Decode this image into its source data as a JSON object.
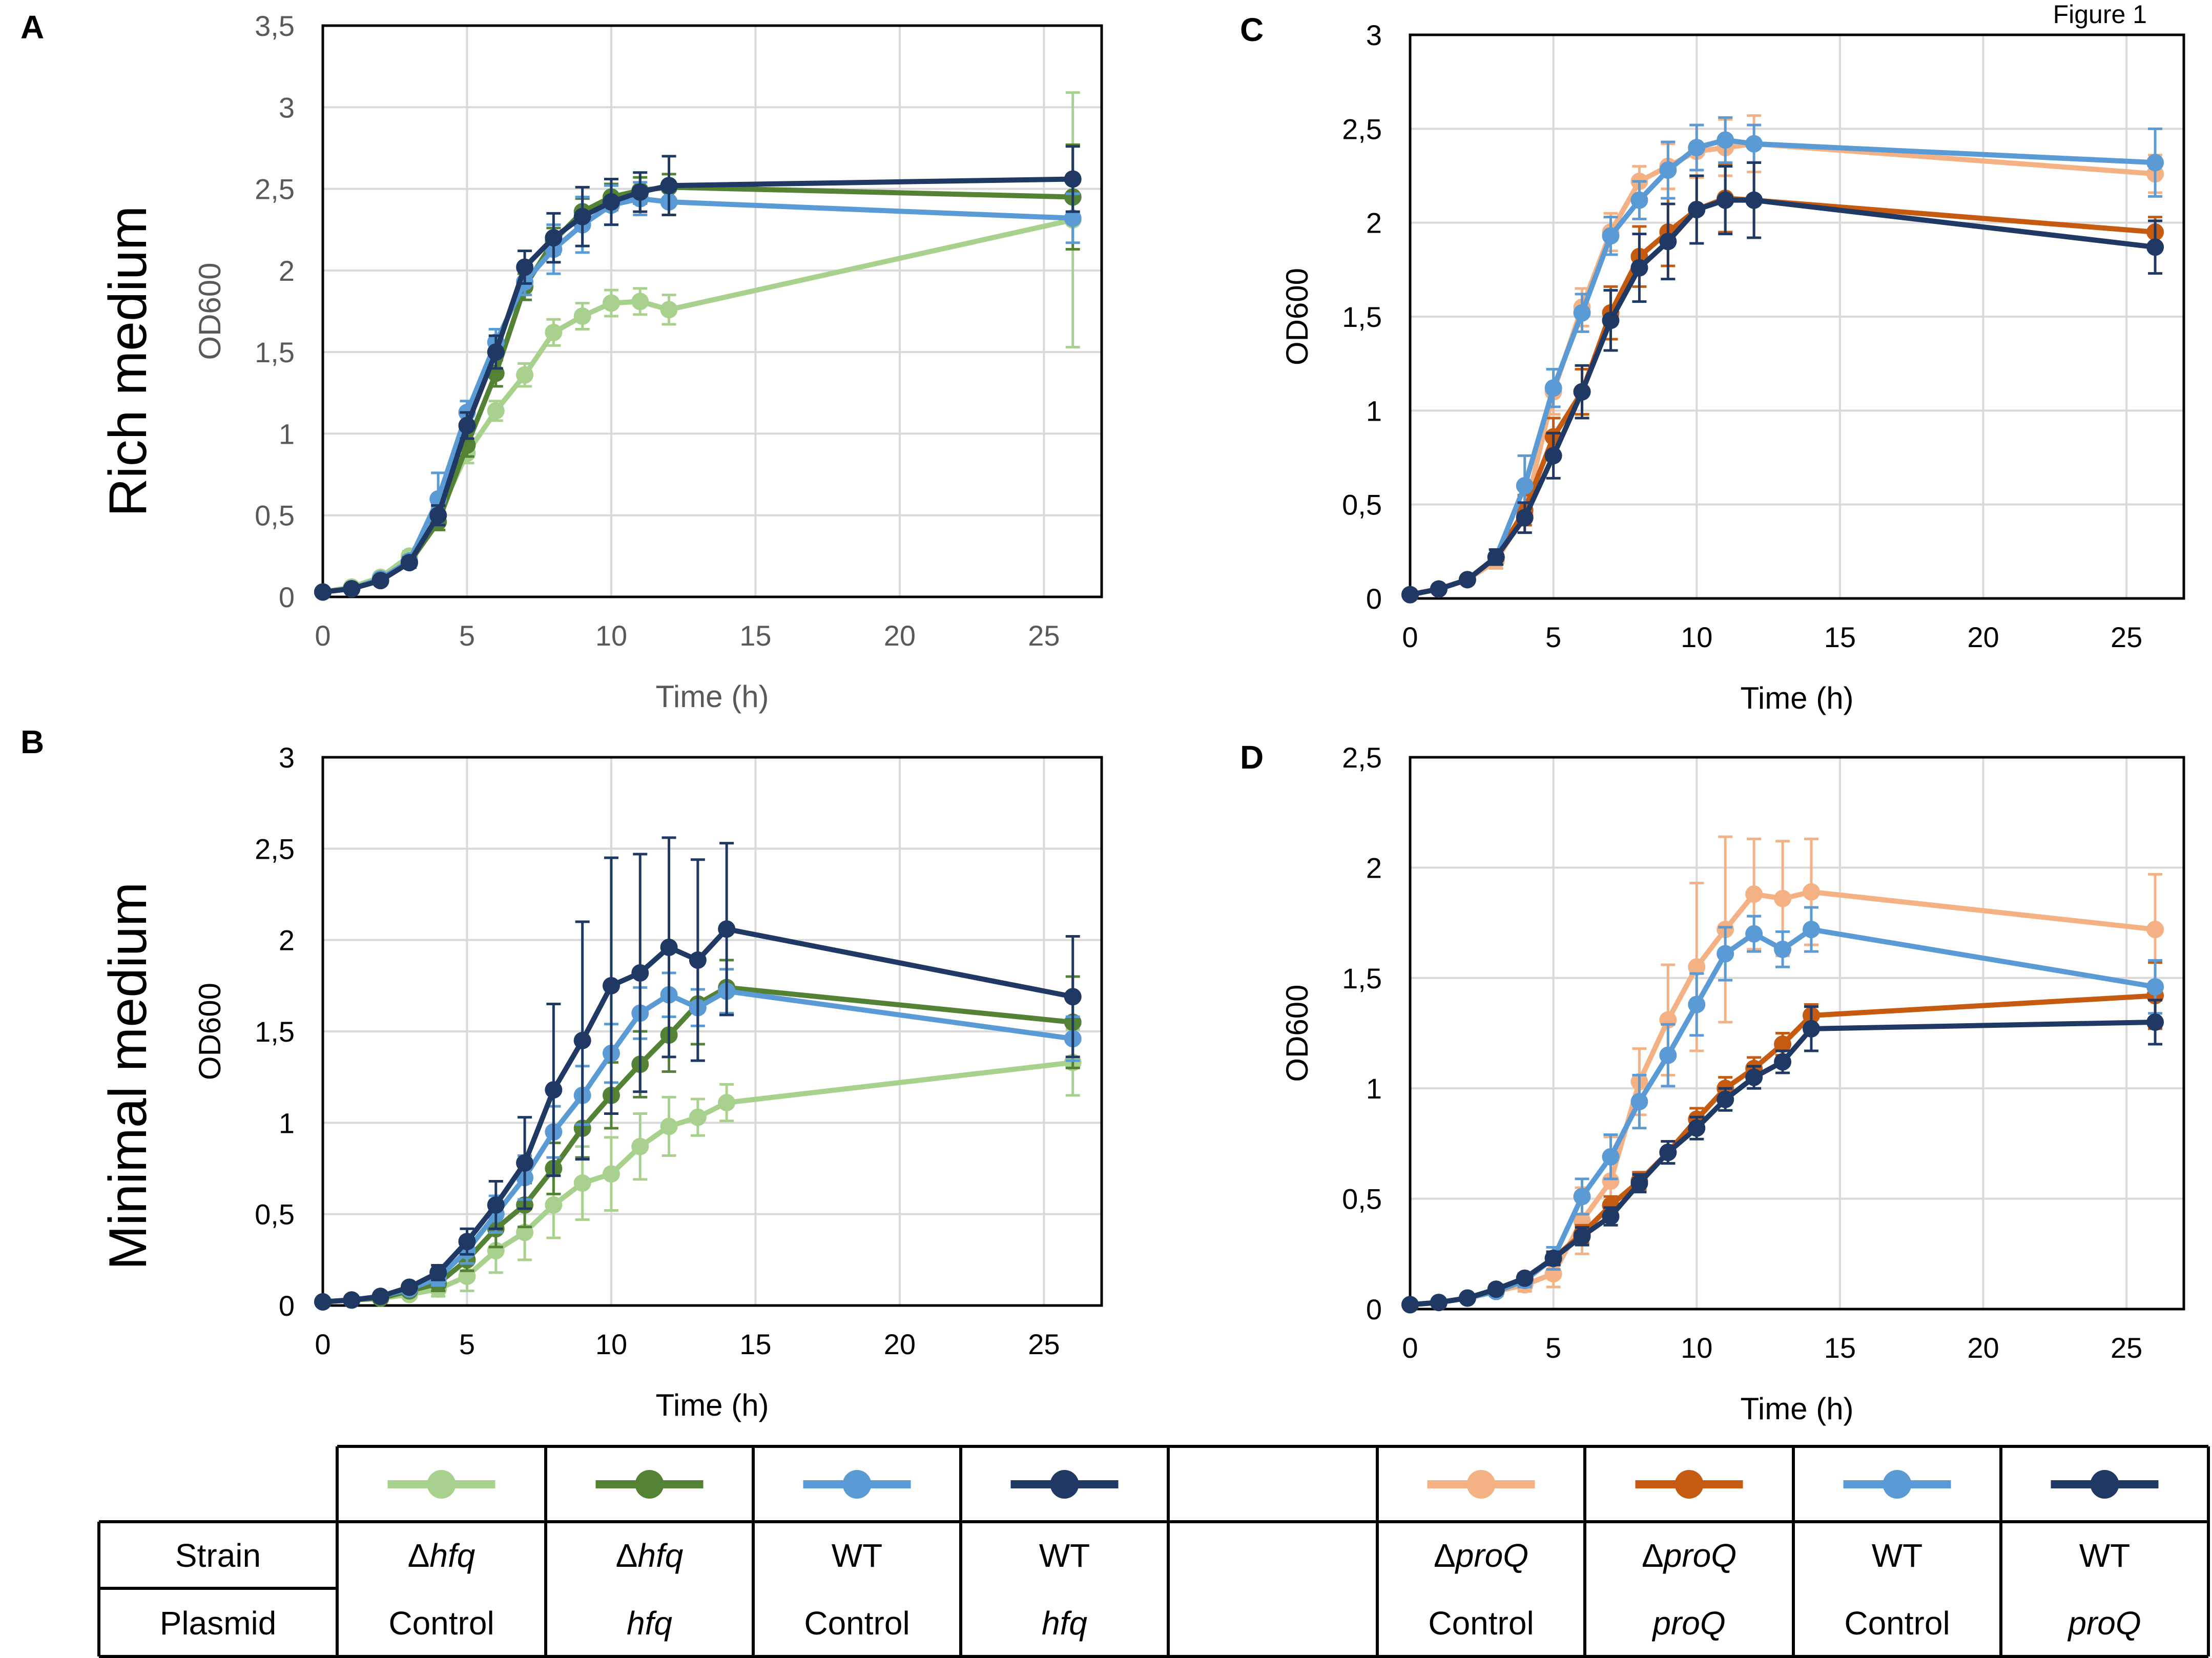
{
  "figure_label": "Figure 1",
  "row_labels": [
    "Rich medium",
    "Minimal medium"
  ],
  "colors": {
    "hfq_control": "#a9d18e",
    "hfq_hfq": "#548235",
    "wt_control": "#5b9bd5",
    "wt_dark": "#1f3864",
    "proq_control": "#f4b183",
    "proq_proq": "#c55a11"
  },
  "chart_data": [
    {
      "panel": "A",
      "type": "line",
      "title": "",
      "xlabel": "Time (h)",
      "ylabel": "OD600",
      "xlim": [
        0,
        27
      ],
      "ylim": [
        0,
        3.5
      ],
      "xticks": [
        "0",
        "5",
        "10",
        "15",
        "20",
        "25"
      ],
      "yticks": [
        "0",
        "0,5",
        "1",
        "1,5",
        "2",
        "2,5",
        "3",
        "3,5"
      ],
      "series": [
        {
          "name": "Δhfq Control",
          "color_key": "hfq_control",
          "x": [
            0,
            1,
            2,
            3,
            4,
            5,
            6,
            7,
            8,
            9,
            10,
            11,
            12,
            26
          ],
          "y": [
            0.03,
            0.06,
            0.12,
            0.25,
            0.5,
            0.88,
            1.14,
            1.36,
            1.62,
            1.72,
            1.8,
            1.81,
            1.76,
            2.31
          ],
          "err": [
            0.01,
            0.01,
            0.02,
            0.03,
            0.05,
            0.06,
            0.06,
            0.07,
            0.08,
            0.08,
            0.08,
            0.08,
            0.09,
            0.78
          ]
        },
        {
          "name": "Δhfq hfq",
          "color_key": "hfq_hfq",
          "x": [
            0,
            1,
            2,
            3,
            4,
            5,
            6,
            7,
            8,
            9,
            10,
            11,
            12,
            26
          ],
          "y": [
            0.03,
            0.05,
            0.1,
            0.21,
            0.46,
            0.93,
            1.37,
            1.9,
            2.18,
            2.36,
            2.45,
            2.49,
            2.51,
            2.45
          ],
          "err": [
            0.01,
            0.01,
            0.02,
            0.03,
            0.05,
            0.07,
            0.08,
            0.08,
            0.08,
            0.08,
            0.08,
            0.08,
            0.08,
            0.32
          ]
        },
        {
          "name": "WT Control",
          "color_key": "wt_control",
          "x": [
            0,
            1,
            2,
            3,
            4,
            5,
            6,
            7,
            8,
            9,
            10,
            11,
            12,
            26
          ],
          "y": [
            0.03,
            0.05,
            0.11,
            0.22,
            0.6,
            1.13,
            1.56,
            1.93,
            2.13,
            2.28,
            2.4,
            2.44,
            2.42,
            2.32
          ],
          "err": [
            0.01,
            0.01,
            0.02,
            0.03,
            0.16,
            0.07,
            0.08,
            0.08,
            0.15,
            0.17,
            0.12,
            0.1,
            0.08,
            0.15
          ]
        },
        {
          "name": "WT hfq",
          "color_key": "wt_dark",
          "x": [
            0,
            1,
            2,
            3,
            4,
            5,
            6,
            7,
            8,
            9,
            10,
            11,
            12,
            26
          ],
          "y": [
            0.03,
            0.05,
            0.1,
            0.21,
            0.5,
            1.05,
            1.5,
            2.02,
            2.2,
            2.33,
            2.42,
            2.48,
            2.52,
            2.56
          ],
          "err": [
            0.01,
            0.01,
            0.02,
            0.03,
            0.06,
            0.08,
            0.1,
            0.1,
            0.15,
            0.18,
            0.14,
            0.12,
            0.18,
            0.2
          ]
        }
      ]
    },
    {
      "panel": "B",
      "type": "line",
      "title": "",
      "xlabel": "Time (h)",
      "ylabel": "OD600",
      "xlim": [
        0,
        27
      ],
      "ylim": [
        0,
        3
      ],
      "xticks": [
        "0",
        "5",
        "10",
        "15",
        "20",
        "25"
      ],
      "yticks": [
        "0",
        "0,5",
        "1",
        "1,5",
        "2",
        "2,5",
        "3"
      ],
      "series": [
        {
          "name": "Δhfq Control",
          "color_key": "hfq_control",
          "x": [
            0,
            1,
            2,
            3,
            4,
            5,
            6,
            7,
            8,
            9,
            10,
            11,
            12,
            13,
            14,
            26
          ],
          "y": [
            0.02,
            0.03,
            0.04,
            0.06,
            0.09,
            0.16,
            0.3,
            0.4,
            0.55,
            0.67,
            0.72,
            0.87,
            0.98,
            1.03,
            1.11,
            1.33
          ],
          "err": [
            0.01,
            0.01,
            0.01,
            0.02,
            0.04,
            0.08,
            0.12,
            0.15,
            0.18,
            0.2,
            0.2,
            0.18,
            0.16,
            0.1,
            0.1,
            0.18
          ]
        },
        {
          "name": "Δhfq hfq",
          "color_key": "hfq_hfq",
          "x": [
            0,
            1,
            2,
            3,
            4,
            5,
            6,
            7,
            8,
            9,
            10,
            11,
            12,
            13,
            14,
            26
          ],
          "y": [
            0.02,
            0.03,
            0.04,
            0.08,
            0.12,
            0.25,
            0.42,
            0.55,
            0.75,
            0.97,
            1.15,
            1.32,
            1.48,
            1.65,
            1.74,
            1.55
          ],
          "err": [
            0.01,
            0.01,
            0.01,
            0.02,
            0.04,
            0.06,
            0.1,
            0.12,
            0.14,
            0.16,
            0.18,
            0.18,
            0.2,
            0.22,
            0.15,
            0.25
          ]
        },
        {
          "name": "WT Control",
          "color_key": "wt_control",
          "x": [
            0,
            1,
            2,
            3,
            4,
            5,
            6,
            7,
            8,
            9,
            10,
            11,
            12,
            13,
            14,
            26
          ],
          "y": [
            0.02,
            0.03,
            0.05,
            0.09,
            0.15,
            0.3,
            0.5,
            0.7,
            0.95,
            1.15,
            1.38,
            1.6,
            1.7,
            1.63,
            1.72,
            1.46
          ],
          "err": [
            0.01,
            0.01,
            0.01,
            0.02,
            0.04,
            0.07,
            0.1,
            0.12,
            0.14,
            0.16,
            0.16,
            0.14,
            0.12,
            0.1,
            0.12,
            0.12
          ]
        },
        {
          "name": "WT hfq",
          "color_key": "wt_dark",
          "x": [
            0,
            1,
            2,
            3,
            4,
            5,
            6,
            7,
            8,
            9,
            10,
            11,
            12,
            13,
            14,
            26
          ],
          "y": [
            0.02,
            0.03,
            0.05,
            0.1,
            0.18,
            0.35,
            0.55,
            0.78,
            1.18,
            1.45,
            1.75,
            1.82,
            1.96,
            1.89,
            2.06,
            1.69
          ],
          "err": [
            0.01,
            0.01,
            0.01,
            0.02,
            0.04,
            0.07,
            0.13,
            0.25,
            0.47,
            0.65,
            0.7,
            0.65,
            0.6,
            0.55,
            0.47,
            0.33
          ]
        }
      ]
    },
    {
      "panel": "C",
      "type": "line",
      "title": "",
      "xlabel": "Time (h)",
      "ylabel": "OD600",
      "xlim": [
        0,
        27
      ],
      "ylim": [
        0,
        3
      ],
      "xticks": [
        "0",
        "5",
        "10",
        "15",
        "20",
        "25"
      ],
      "yticks": [
        "0",
        "0,5",
        "1",
        "1,5",
        "2",
        "2,5",
        "3"
      ],
      "series": [
        {
          "name": "ΔproQ Control",
          "color_key": "proq_control",
          "x": [
            0,
            1,
            2,
            3,
            4,
            5,
            6,
            7,
            8,
            9,
            10,
            11,
            12,
            26
          ],
          "y": [
            0.02,
            0.05,
            0.1,
            0.2,
            0.45,
            1.1,
            1.55,
            1.95,
            2.22,
            2.3,
            2.38,
            2.4,
            2.42,
            2.26
          ],
          "err": [
            0.01,
            0.01,
            0.02,
            0.04,
            0.1,
            0.12,
            0.1,
            0.1,
            0.08,
            0.12,
            0.14,
            0.15,
            0.15,
            0.1
          ]
        },
        {
          "name": "ΔproQ proQ",
          "color_key": "proq_proq",
          "x": [
            0,
            1,
            2,
            3,
            4,
            5,
            6,
            7,
            8,
            9,
            10,
            11,
            12,
            26
          ],
          "y": [
            0.02,
            0.05,
            0.1,
            0.22,
            0.47,
            0.86,
            1.1,
            1.52,
            1.82,
            1.95,
            2.07,
            2.13,
            2.12,
            1.95
          ],
          "err": [
            0.01,
            0.01,
            0.02,
            0.04,
            0.08,
            0.1,
            0.12,
            0.14,
            0.16,
            0.18,
            0.18,
            0.18,
            0.2,
            0.08
          ]
        },
        {
          "name": "WT Control",
          "color_key": "wt_control",
          "x": [
            0,
            1,
            2,
            3,
            4,
            5,
            6,
            7,
            8,
            9,
            10,
            11,
            12,
            26
          ],
          "y": [
            0.02,
            0.05,
            0.1,
            0.22,
            0.6,
            1.12,
            1.52,
            1.93,
            2.12,
            2.28,
            2.4,
            2.44,
            2.42,
            2.32
          ],
          "err": [
            0.01,
            0.01,
            0.02,
            0.04,
            0.16,
            0.1,
            0.1,
            0.1,
            0.1,
            0.15,
            0.12,
            0.12,
            0.1,
            0.18
          ]
        },
        {
          "name": "WT proQ",
          "color_key": "wt_dark",
          "x": [
            0,
            1,
            2,
            3,
            4,
            5,
            6,
            7,
            8,
            9,
            10,
            11,
            12,
            26
          ],
          "y": [
            0.02,
            0.05,
            0.1,
            0.22,
            0.43,
            0.76,
            1.1,
            1.48,
            1.76,
            1.9,
            2.07,
            2.12,
            2.12,
            1.87
          ],
          "err": [
            0.01,
            0.01,
            0.02,
            0.04,
            0.08,
            0.12,
            0.14,
            0.16,
            0.18,
            0.2,
            0.18,
            0.18,
            0.2,
            0.14
          ]
        }
      ]
    },
    {
      "panel": "D",
      "type": "line",
      "title": "",
      "xlabel": "Time (h)",
      "ylabel": "OD600",
      "xlim": [
        0,
        27
      ],
      "ylim": [
        0,
        2.5
      ],
      "xticks": [
        "0",
        "5",
        "10",
        "15",
        "20",
        "25"
      ],
      "yticks": [
        "0",
        "0,5",
        "1",
        "1,5",
        "2",
        "2,5"
      ],
      "series": [
        {
          "name": "ΔproQ Control",
          "color_key": "proq_control",
          "x": [
            0,
            1,
            2,
            3,
            4,
            5,
            6,
            7,
            8,
            9,
            10,
            11,
            12,
            13,
            14,
            26
          ],
          "y": [
            0.02,
            0.03,
            0.05,
            0.08,
            0.11,
            0.16,
            0.4,
            0.58,
            1.03,
            1.31,
            1.55,
            1.72,
            1.88,
            1.86,
            1.89,
            1.72
          ],
          "err": [
            0.01,
            0.01,
            0.01,
            0.02,
            0.03,
            0.06,
            0.15,
            0.2,
            0.15,
            0.25,
            0.38,
            0.42,
            0.25,
            0.26,
            0.24,
            0.25
          ]
        },
        {
          "name": "ΔproQ proQ",
          "color_key": "proq_proq",
          "x": [
            0,
            1,
            2,
            3,
            4,
            5,
            6,
            7,
            8,
            9,
            10,
            11,
            12,
            13,
            14,
            26
          ],
          "y": [
            0.02,
            0.03,
            0.05,
            0.08,
            0.13,
            0.23,
            0.34,
            0.47,
            0.58,
            0.71,
            0.86,
            1.0,
            1.09,
            1.2,
            1.33,
            1.42
          ],
          "err": [
            0.01,
            0.01,
            0.01,
            0.02,
            0.02,
            0.03,
            0.04,
            0.04,
            0.04,
            0.05,
            0.05,
            0.05,
            0.05,
            0.05,
            0.05,
            0.15
          ]
        },
        {
          "name": "WT Control",
          "color_key": "wt_control",
          "x": [
            0,
            1,
            2,
            3,
            4,
            5,
            6,
            7,
            8,
            9,
            10,
            11,
            12,
            13,
            14,
            26
          ],
          "y": [
            0.02,
            0.03,
            0.05,
            0.08,
            0.13,
            0.23,
            0.51,
            0.69,
            0.94,
            1.15,
            1.38,
            1.61,
            1.7,
            1.63,
            1.72,
            1.46
          ],
          "err": [
            0.01,
            0.01,
            0.01,
            0.02,
            0.03,
            0.05,
            0.08,
            0.1,
            0.12,
            0.14,
            0.14,
            0.12,
            0.08,
            0.08,
            0.1,
            0.12
          ]
        },
        {
          "name": "WT proQ",
          "color_key": "wt_dark",
          "x": [
            0,
            1,
            2,
            3,
            4,
            5,
            6,
            7,
            8,
            9,
            10,
            11,
            12,
            13,
            14,
            26
          ],
          "y": [
            0.02,
            0.03,
            0.05,
            0.09,
            0.14,
            0.23,
            0.33,
            0.42,
            0.57,
            0.71,
            0.82,
            0.95,
            1.05,
            1.12,
            1.27,
            1.3
          ],
          "err": [
            0.01,
            0.01,
            0.01,
            0.02,
            0.02,
            0.03,
            0.04,
            0.04,
            0.04,
            0.05,
            0.05,
            0.05,
            0.05,
            0.05,
            0.1,
            0.1
          ]
        }
      ]
    }
  ],
  "legend": {
    "row_headers": [
      "Strain",
      "Plasmid"
    ],
    "groups": [
      [
        {
          "color_key": "hfq_control",
          "strain_prefix": "Δ",
          "strain_italic": "hfq",
          "plasmid": "Control",
          "plasmid_italic": false
        },
        {
          "color_key": "hfq_hfq",
          "strain_prefix": "Δ",
          "strain_italic": "hfq",
          "plasmid": "hfq",
          "plasmid_italic": true
        },
        {
          "color_key": "wt_control",
          "strain_prefix": "WT",
          "strain_italic": "",
          "plasmid": "Control",
          "plasmid_italic": false
        },
        {
          "color_key": "wt_dark",
          "strain_prefix": "WT",
          "strain_italic": "",
          "plasmid": "hfq",
          "plasmid_italic": true
        }
      ],
      [
        {
          "color_key": "proq_control",
          "strain_prefix": "Δ",
          "strain_italic": "proQ",
          "plasmid": "Control",
          "plasmid_italic": false
        },
        {
          "color_key": "proq_proq",
          "strain_prefix": "Δ",
          "strain_italic": "proQ",
          "plasmid": "proQ",
          "plasmid_italic": true
        },
        {
          "color_key": "wt_control",
          "strain_prefix": "WT",
          "strain_italic": "",
          "plasmid": "Control",
          "plasmid_italic": false
        },
        {
          "color_key": "wt_dark",
          "strain_prefix": "WT",
          "strain_italic": "",
          "plasmid": "proQ",
          "plasmid_italic": true
        }
      ]
    ]
  }
}
